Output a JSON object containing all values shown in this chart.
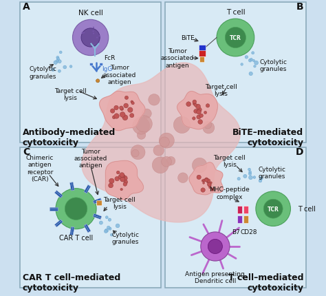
{
  "bg_color": "#cce0f0",
  "panel_bg_A": "#d8eaf5",
  "panel_bg_B": "#d8eaf5",
  "panel_bg_C": "#d8eaf5",
  "panel_bg_D": "#d8eaf5",
  "border_color": "#8aaabb",
  "title_A": "Antibody–mediated\ncytotoxicity",
  "title_B": "BiTE–mediated\ncytotoxicity",
  "title_C": "CAR T cell–mediated\ncytotoxicity",
  "title_D": "T cell–mediated\ncytotoxicity",
  "nk_cell_color": "#9b7ec8",
  "nk_cell_edge": "#7a5ea8",
  "nk_nucleus_color": "#6b4e9a",
  "nk_nucleus_edge": "#4a2e7a",
  "t_cell_color": "#6abf7a",
  "t_cell_edge": "#4a9f5a",
  "t_nucleus_color": "#3d8a4d",
  "granule_color": "#88bbdd",
  "granule_edge": "#5599cc",
  "igg_color": "#4477cc",
  "fcr_color": "#5599dd",
  "car_body_color": "#2255aa",
  "car_light_color": "#aabbdd",
  "antigen_color": "#cc8833",
  "bite_red": "#cc2222",
  "bite_blue": "#2233cc",
  "mhc_color1": "#cc2255",
  "mhc_color2": "#ee4466",
  "b7_color": "#8833bb",
  "cd28_color": "#aa55cc",
  "dendritic_color": "#bb66cc",
  "dendritic_nucleus": "#883399",
  "tumor_outer": "#e8aaaa",
  "tumor_mid": "#d08888",
  "tumor_dark": "#aa4444",
  "tumor_cell_fill": "#c05555",
  "tumor_cell_edge": "#883333",
  "arrow_color": "#333333",
  "text_color": "#111111",
  "label_fs": 7,
  "title_fs": 9,
  "panel_label_fs": 10
}
